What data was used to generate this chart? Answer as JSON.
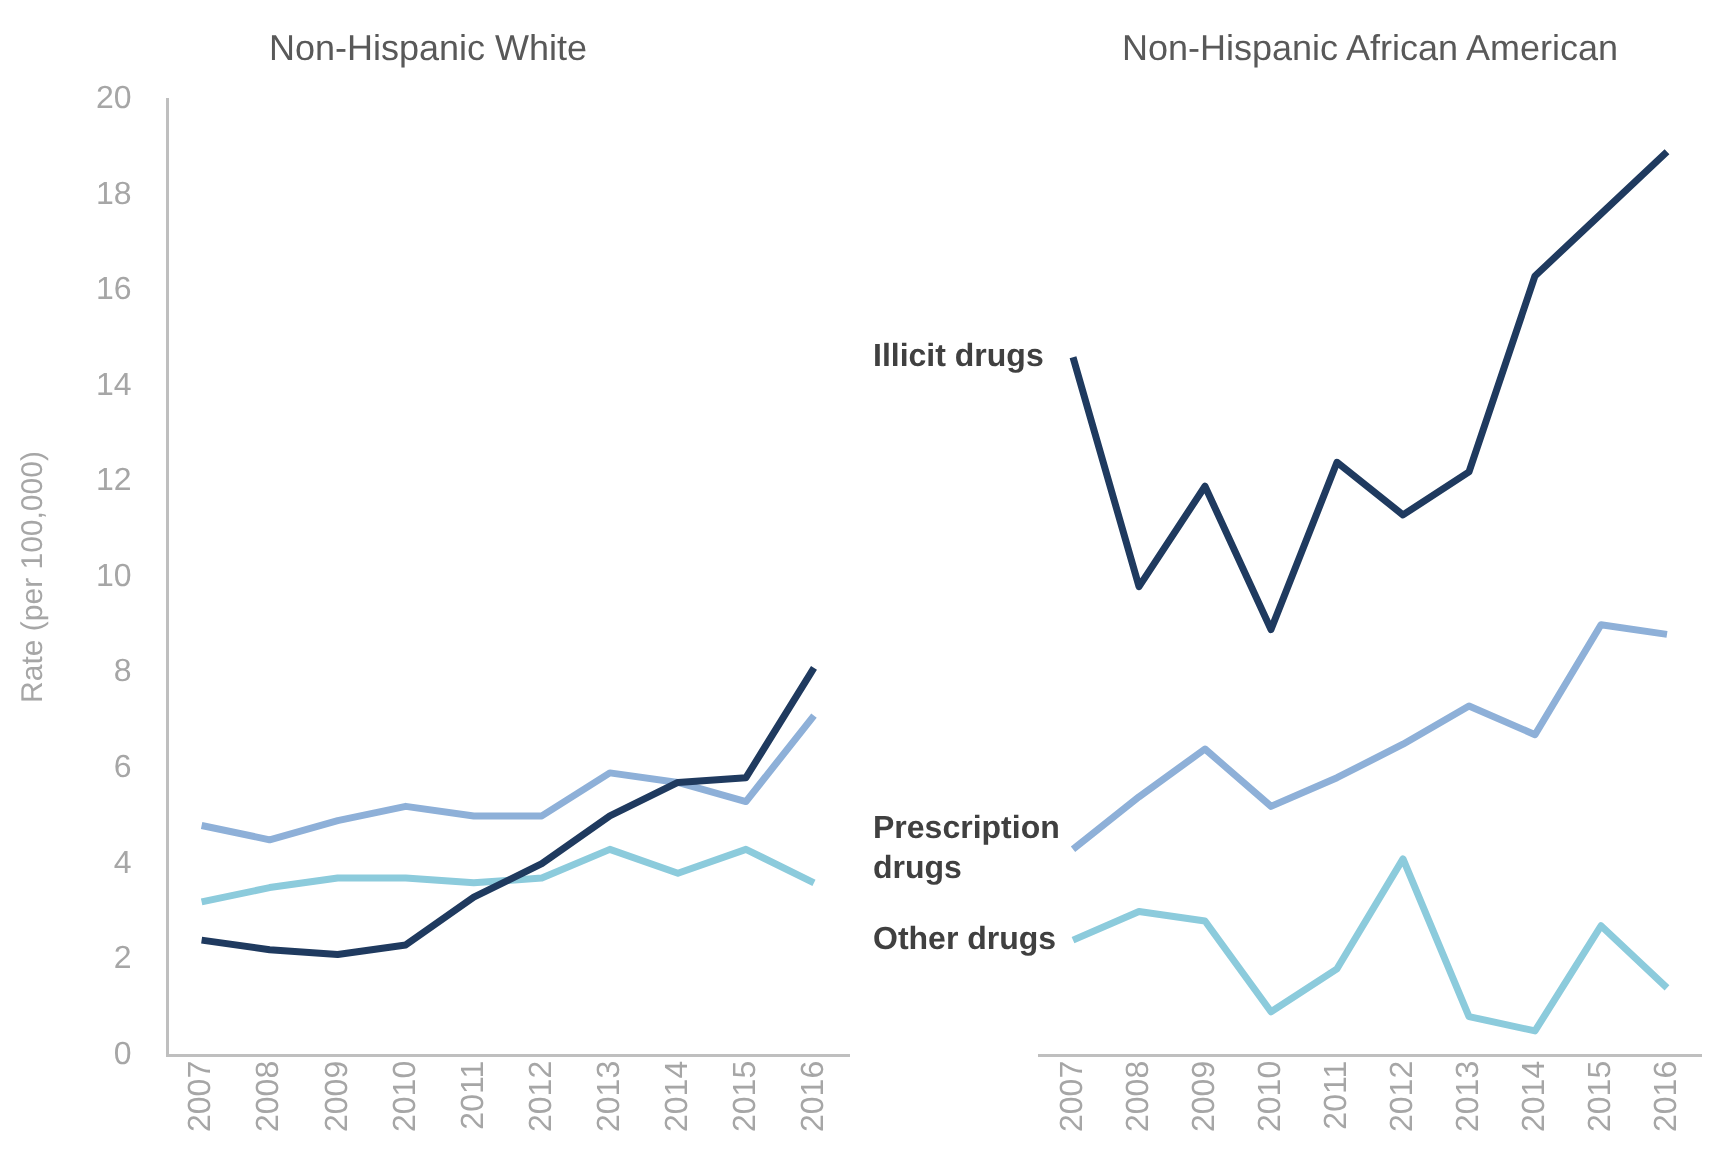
{
  "chart_data": [
    {
      "type": "line",
      "title": "Non-Hispanic White",
      "ylabel": "Rate (per 100,000)",
      "categories": [
        "2007",
        "2008",
        "2009",
        "2010",
        "2011",
        "2012",
        "2013",
        "2014",
        "2015",
        "2016"
      ],
      "ylim": [
        0,
        20
      ],
      "yticks": [
        0,
        2,
        4,
        6,
        8,
        10,
        12,
        14,
        16,
        18,
        20
      ],
      "grid": false,
      "legend": false,
      "marker": "none",
      "series": [
        {
          "color": "#1f3a5f",
          "values": [
            2.4,
            2.2,
            2.1,
            2.3,
            3.3,
            4.0,
            5.0,
            5.7,
            5.8,
            8.1
          ]
        },
        {
          "color": "#8eb0d8",
          "values": [
            4.8,
            4.5,
            4.9,
            5.2,
            5.0,
            5.0,
            5.9,
            5.7,
            5.3,
            7.1
          ]
        },
        {
          "color": "#8ccbdc",
          "values": [
            3.2,
            3.5,
            3.7,
            3.7,
            3.6,
            3.7,
            4.3,
            3.8,
            4.3,
            3.6
          ]
        }
      ]
    },
    {
      "type": "line",
      "title": "Non-Hispanic African American",
      "categories": [
        "2007",
        "2008",
        "2009",
        "2010",
        "2011",
        "2012",
        "2013",
        "2014",
        "2015",
        "2016"
      ],
      "ylim": [
        0,
        20
      ],
      "tick_labels": "x",
      "grid": false,
      "legend": false,
      "marker": "none",
      "series": [
        {
          "name": "Illicit drugs",
          "color": "#1f3a5f",
          "values": [
            14.6,
            9.8,
            11.9,
            8.9,
            12.4,
            11.3,
            12.2,
            16.3,
            17.6,
            18.9
          ]
        },
        {
          "name": "Prescription drugs",
          "color": "#8eb0d8",
          "values": [
            4.3,
            5.4,
            6.4,
            5.2,
            5.8,
            6.5,
            7.3,
            6.7,
            9.0,
            8.8
          ]
        },
        {
          "name": "Other drugs",
          "color": "#8ccbdc",
          "values": [
            2.4,
            3.0,
            2.8,
            0.9,
            1.8,
            4.1,
            0.8,
            0.5,
            2.7,
            1.4
          ]
        }
      ]
    }
  ]
}
